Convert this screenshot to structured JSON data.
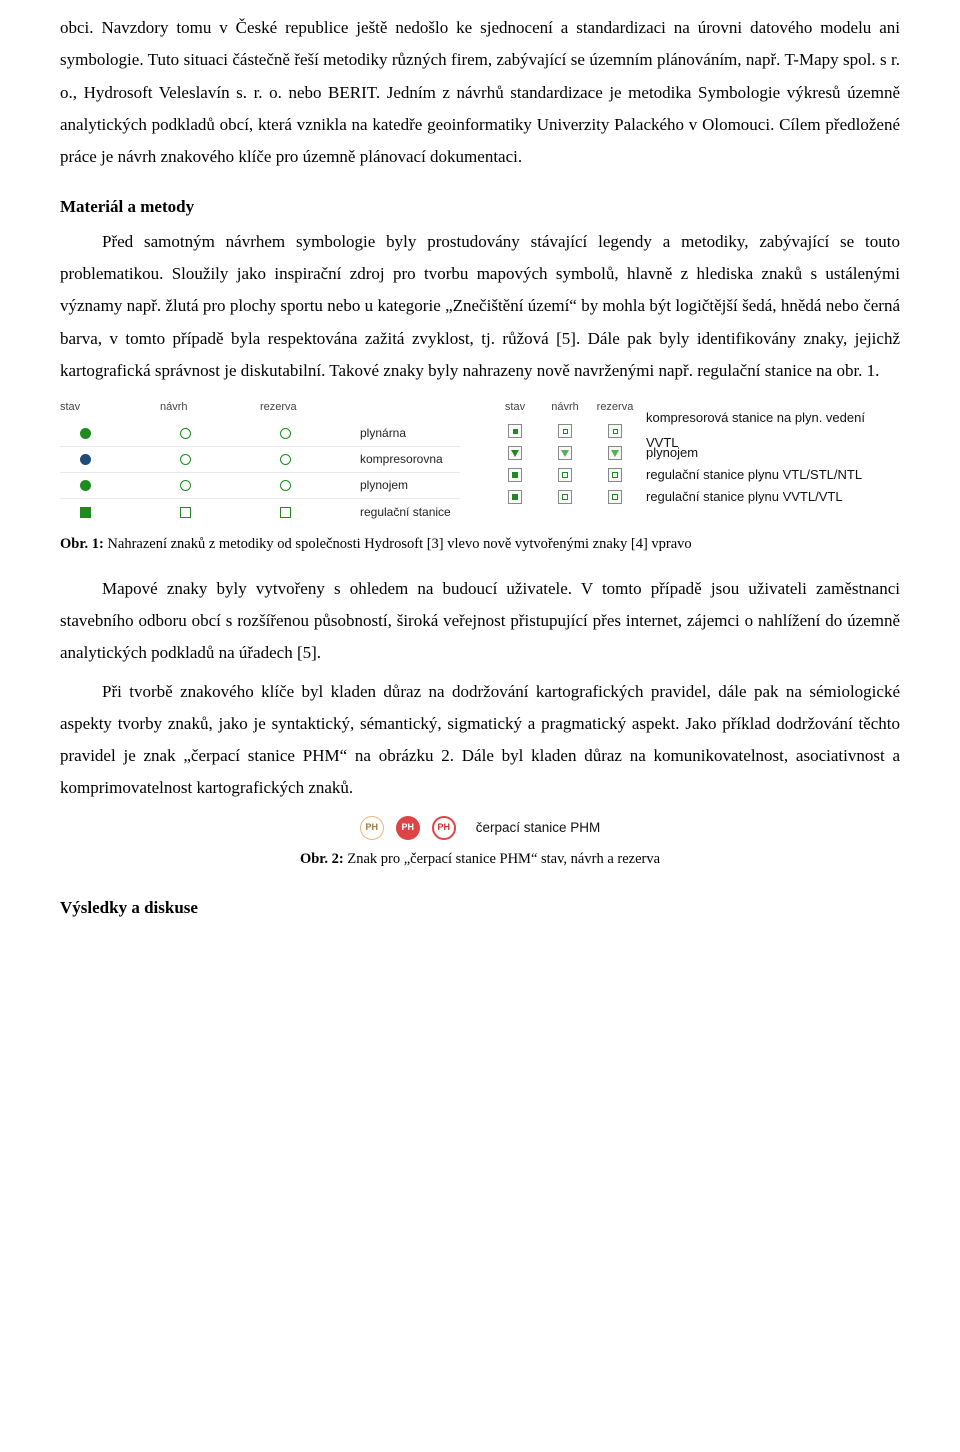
{
  "p1": "obci. Navzdory tomu v České republice ještě nedošlo ke sjednocení a standardizaci na úrovni datového modelu ani symbologie. Tuto situaci částečně řeší metodiky různých firem, zabývající se územním plánováním, např. T-Mapy spol. s r. o., Hydrosoft Veleslavín s. r. o. nebo BERIT. Jedním z návrhů standardizace je metodika Symbologie výkresů územně analytických podkladů obcí, která vznikla na katedře geoinformatiky Univerzity Palackého v Olomouci. Cílem předložené práce je návrh znakového klíče pro územně plánovací dokumentaci.",
  "h1": "Materiál a metody",
  "p2": "Před samotným návrhem symbologie byly prostudovány stávající legendy a metodiky, zabývající se touto problematikou. Sloužily jako inspirační zdroj pro tvorbu mapových symbolů, hlavně z hlediska znaků s ustálenými významy např. žlutá pro plochy sportu nebo u kategorie „Znečištění území“ by mohla být logičtější šedá, hnědá nebo černá barva, v tomto případě byla respektována zažitá zvyklost, tj. růžová [5]. Dále pak byly identifikovány znaky, jejichž kartografická správnost je diskutabilní. Takové znaky byly nahrazeny nově navrženými např. regulační stanice na obr. 1.",
  "fig1": {
    "left": {
      "headers": [
        "stav",
        "návrh",
        "rezerva"
      ],
      "rows": [
        {
          "label": "plynárna",
          "cells": [
            "circle-fill",
            "circle-open",
            "circle-open"
          ]
        },
        {
          "label": "kompresorovna",
          "cells": [
            "circle-fill-navy",
            "circle-open",
            "circle-open"
          ]
        },
        {
          "label": "plynojem",
          "cells": [
            "circle-fill",
            "circle-open",
            "circle-open"
          ]
        },
        {
          "label": "regulační stanice",
          "cells": [
            "square-fill",
            "square-open",
            "square-open"
          ]
        }
      ]
    },
    "right": {
      "headers": [
        "stav",
        "návrh",
        "rezerva"
      ],
      "rows": [
        {
          "label": "kompresorová stanice na plyn. vedení VVTL",
          "cells": [
            "dot-g",
            "dot-g-open",
            "dot-g-pale"
          ]
        },
        {
          "label": "plynojem",
          "cells": [
            "tri-g",
            "tri-g-open",
            "tri-g-pale"
          ]
        },
        {
          "label": "regulační stanice plynu VTL/STL/NTL",
          "cells": [
            "sq-g",
            "sq-g-open",
            "sq-g-pale"
          ]
        },
        {
          "label": "regulační stanice plynu VVTL/VTL",
          "cells": [
            "sq-g",
            "sq-g-open",
            "sq-g-pale"
          ]
        }
      ]
    }
  },
  "cap1_prefix": "Obr. 1: ",
  "cap1": "Nahrazení znaků z metodiky od společnosti Hydrosoft [3] vlevo nově vytvořenými znaky [4] vpravo",
  "p3": "Mapové znaky byly vytvořeny s ohledem na budoucí uživatele. V tomto případě jsou uživateli zaměstnanci stavebního odboru obcí s rozšířenou působností, široká veřejnost přistupující přes internet, zájemci o nahlížení do územně analytických podkladů na úřadech [5].",
  "p4": "Při tvorbě znakového klíče byl kladen důraz na dodržování kartografických pravidel, dále pak na sémiologické aspekty tvorby znaků, jako je syntaktický, sémantický, sigmatický a pragmatický aspekt. Jako příklad dodržování těchto pravidel je znak „čerpací stanice PHM“ na obrázku 2.  Dále byl kladen důraz na komunikovatelnost, asociativnost a komprimovatelnost kartografických znaků.",
  "fig2": {
    "badges": [
      {
        "text": "PH",
        "cls": "ph1",
        "name": "phm-badge-state"
      },
      {
        "text": "PH",
        "cls": "ph2",
        "name": "phm-badge-draft"
      },
      {
        "text": "PH",
        "cls": "ph3",
        "name": "phm-badge-reserve"
      }
    ],
    "label": "čerpací stanice PHM"
  },
  "cap2_prefix": "Obr. 2: ",
  "cap2": "Znak pro „čerpací stanice PHM“ stav, návrh a rezerva",
  "h2": "Výsledky a diskuse"
}
